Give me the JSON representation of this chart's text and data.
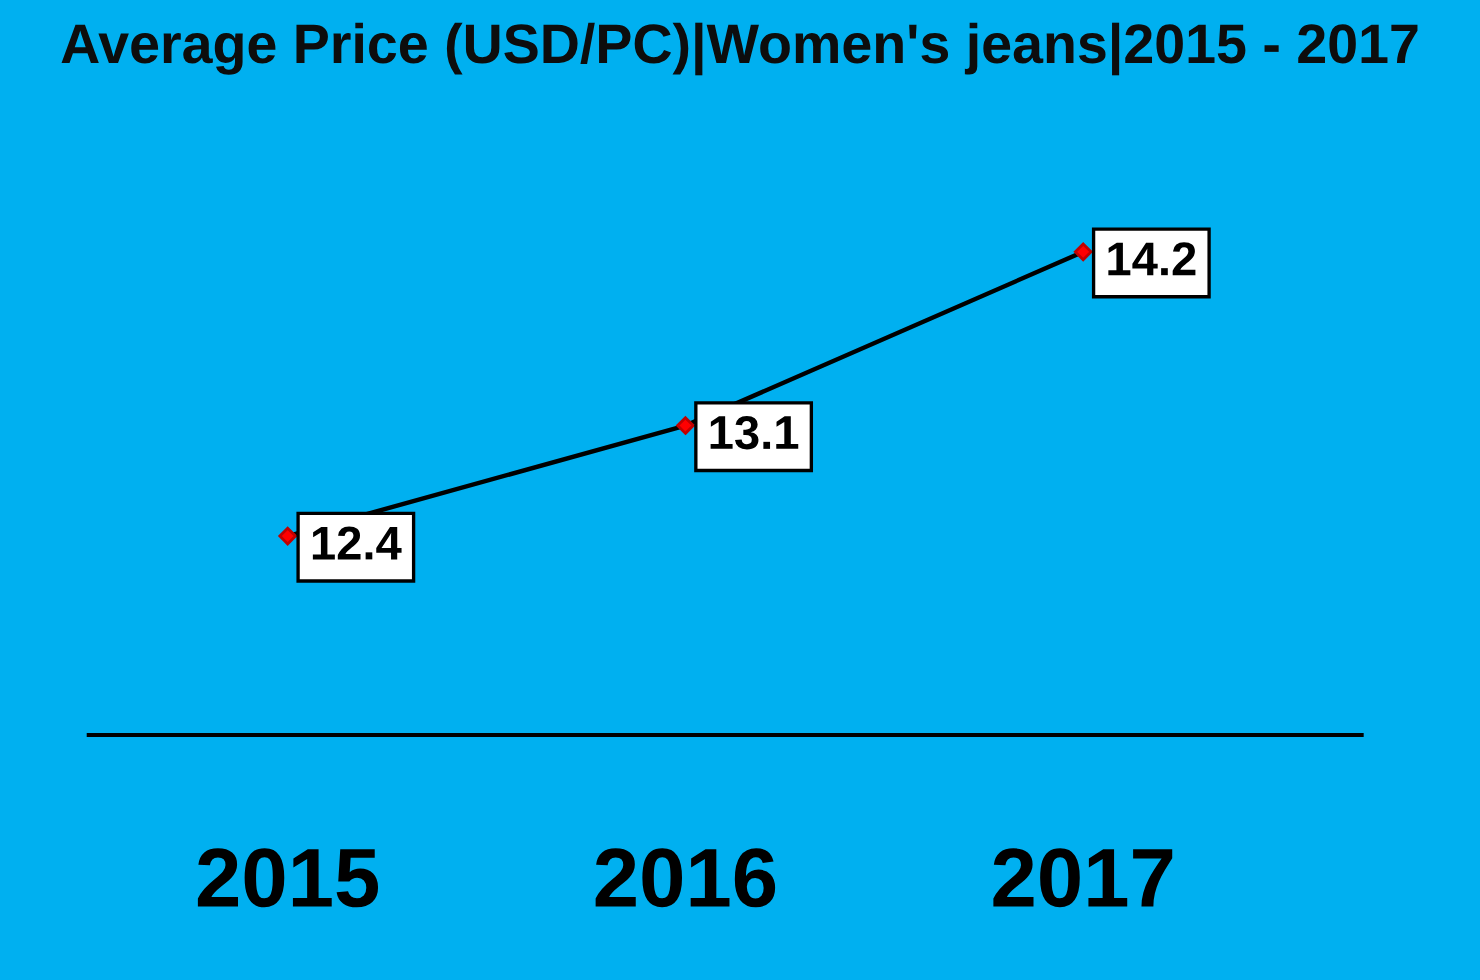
{
  "chart_data": {
    "type": "line",
    "title": "Average Price (USD/PC)|Women's jeans|2015 - 2017",
    "categories": [
      "2015",
      "2016",
      "2017"
    ],
    "series": [
      {
        "color": "#000000",
        "values": [
          12.4,
          13.1,
          14.2
        ]
      }
    ],
    "tick_labels": "x",
    "data_labels": true,
    "marker": "diamond",
    "line_style": "solid"
  }
}
